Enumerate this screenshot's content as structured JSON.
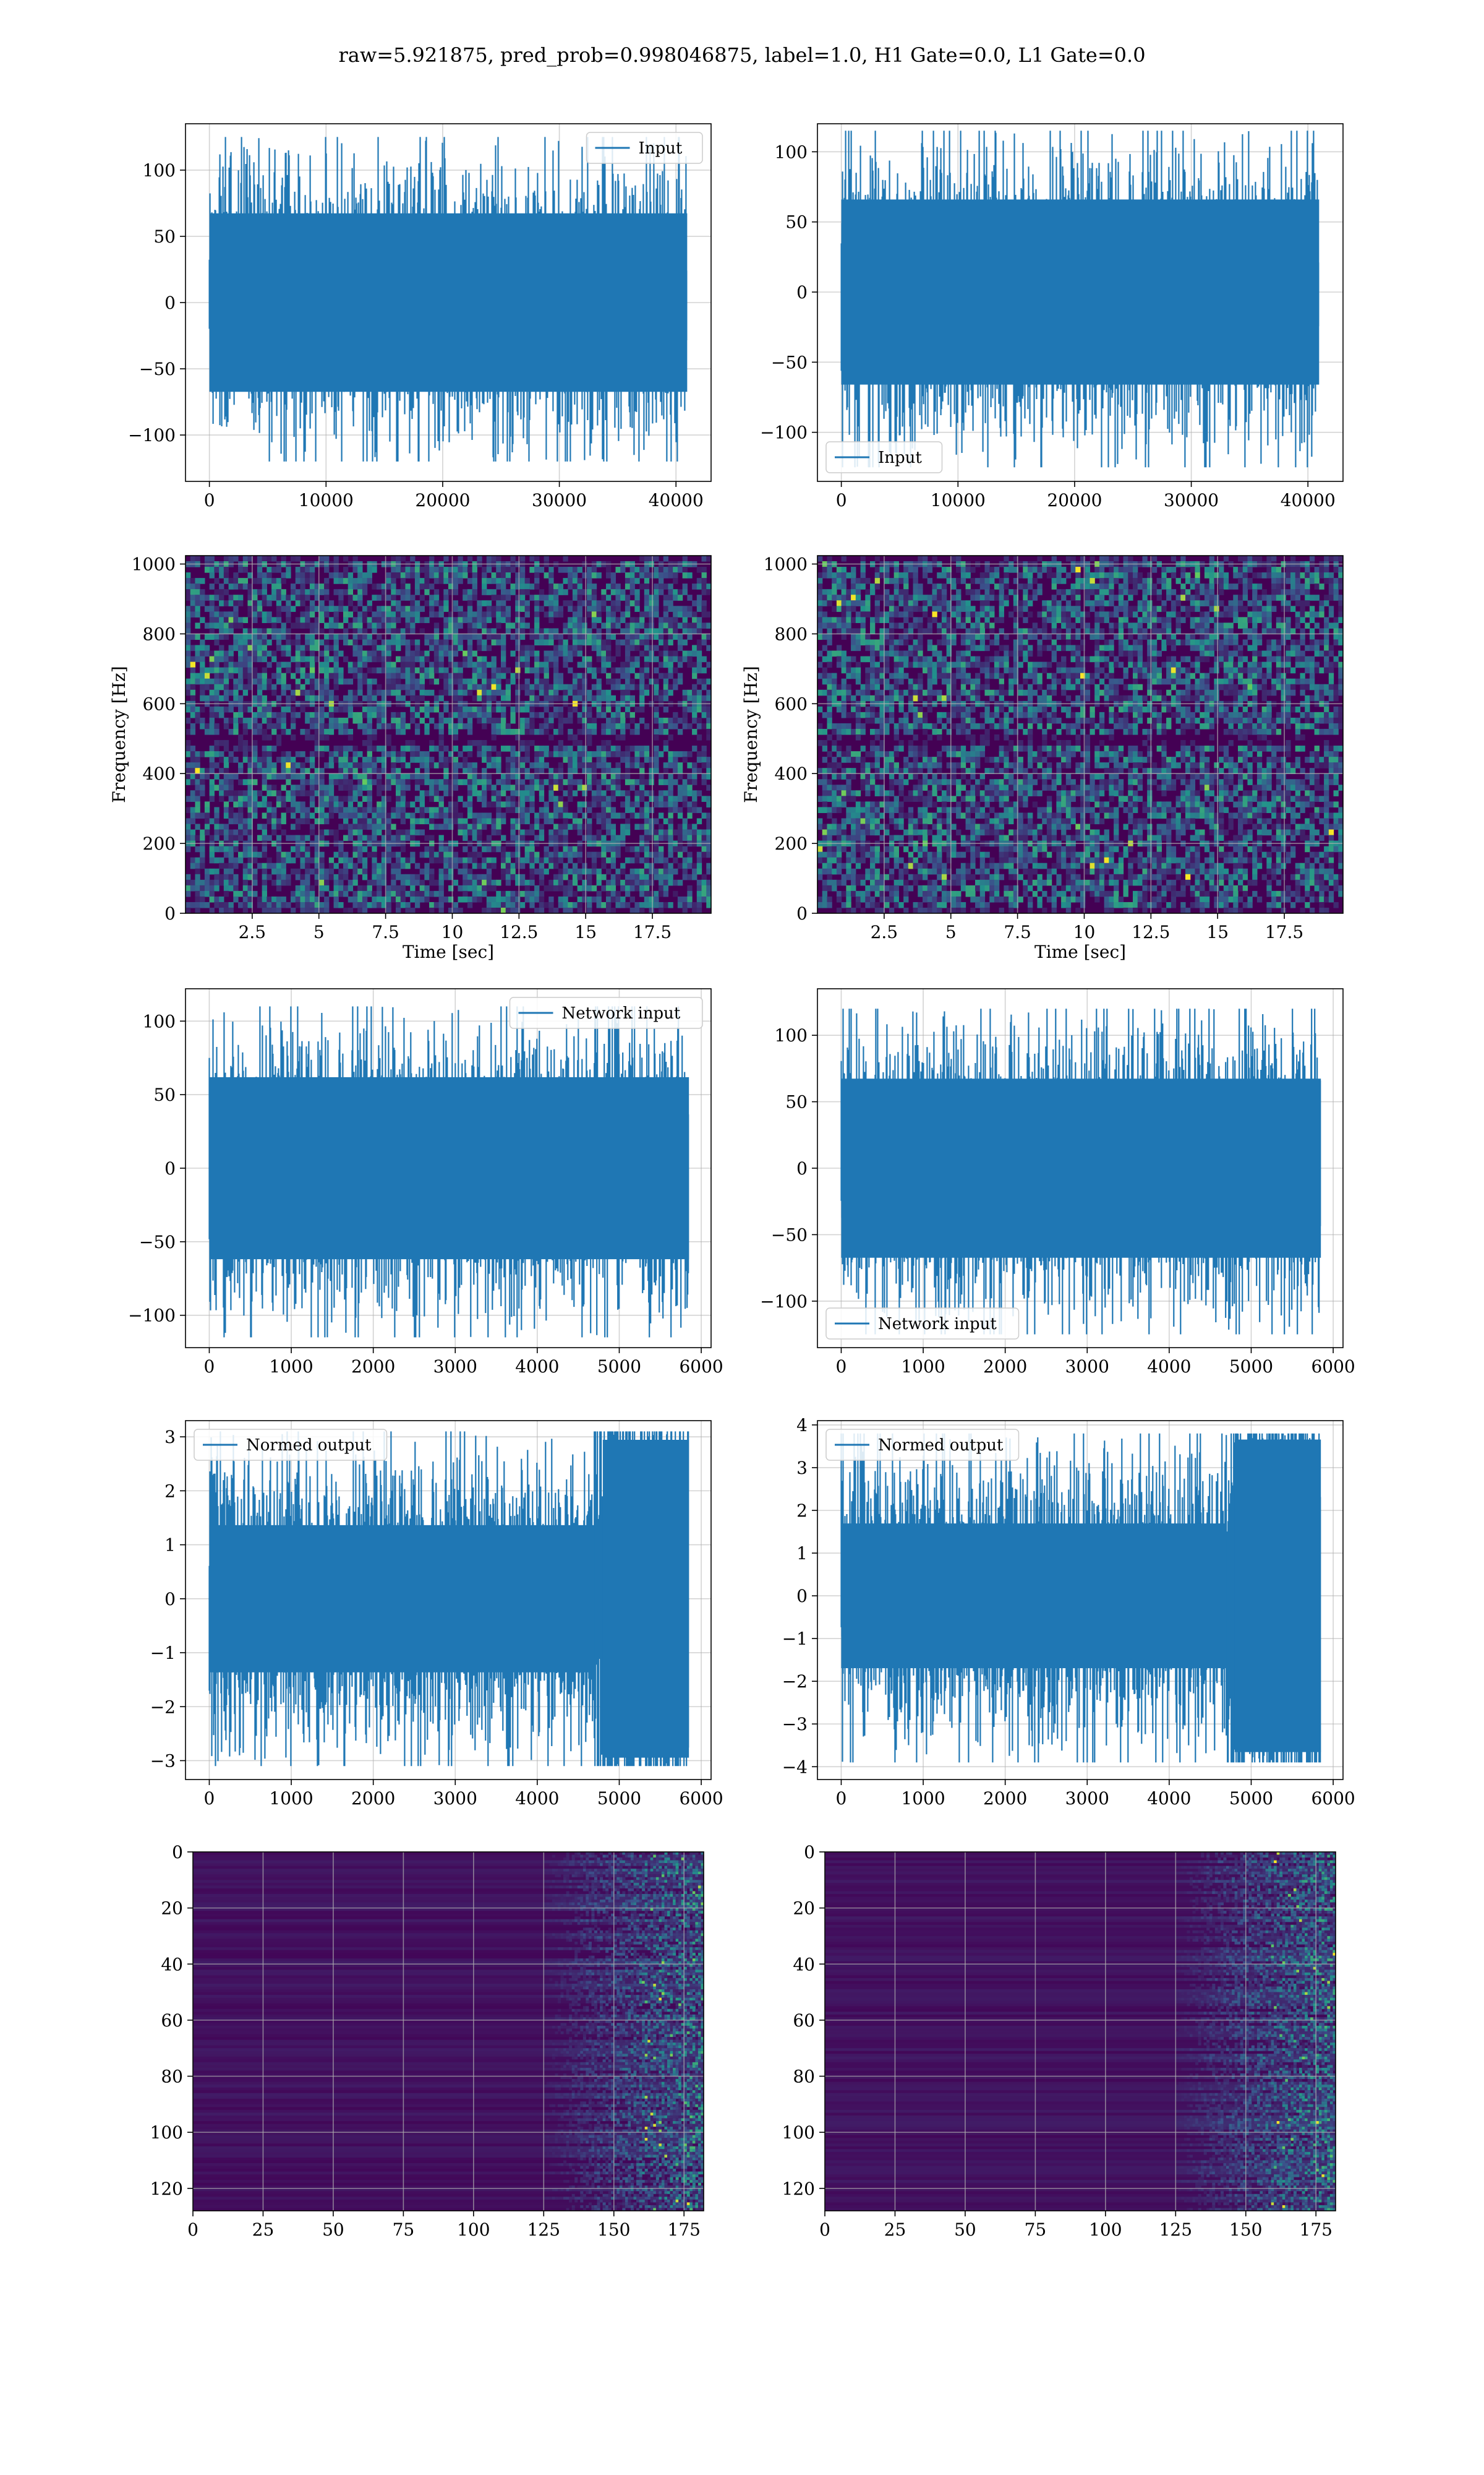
{
  "figure": {
    "suptitle": "raw=5.921875, pred_prob=0.998046875, label=1.0, H1 Gate=0.0, L1 Gate=0.0",
    "colors": {
      "line": "#1f77b4",
      "grid": "#b0b0b0",
      "viridis_dark": "#440154",
      "viridis_mid": "#21918c",
      "viridis_bright": "#fde725"
    }
  },
  "chart_data": [
    {
      "id": "input-h1",
      "type": "line",
      "series": [
        {
          "name": "Input",
          "n_points": 40960,
          "amplitude_range": [
            -120,
            125
          ]
        }
      ],
      "legend": "top-right",
      "xlim": [
        -2048,
        43008
      ],
      "ylim": [
        -135,
        135
      ],
      "xticks": [
        0,
        10000,
        20000,
        30000,
        40000
      ],
      "yticks": [
        -100,
        -50,
        0,
        50,
        100
      ],
      "grid": true
    },
    {
      "id": "input-l1",
      "type": "line",
      "series": [
        {
          "name": "Input",
          "n_points": 40960,
          "amplitude_range": [
            -125,
            115
          ]
        }
      ],
      "legend": "bottom-left",
      "xlim": [
        -2048,
        43008
      ],
      "ylim": [
        -135,
        120
      ],
      "xticks": [
        0,
        10000,
        20000,
        30000,
        40000
      ],
      "yticks": [
        -100,
        -50,
        0,
        50,
        100
      ],
      "grid": true
    },
    {
      "id": "spec-h1",
      "type": "heatmap",
      "colormap": "viridis",
      "xlabel": "Time [sec]",
      "ylabel": "Frequency [Hz]",
      "xlim": [
        0,
        19.7
      ],
      "ylim": [
        0,
        1024
      ],
      "xticks": [
        2.5,
        5.0,
        7.5,
        10.0,
        12.5,
        15.0,
        17.5
      ],
      "yticks": [
        0,
        200,
        400,
        600,
        800,
        1000
      ],
      "dark_band_hz": 500,
      "grid": true
    },
    {
      "id": "spec-l1",
      "type": "heatmap",
      "colormap": "viridis",
      "xlabel": "Time [sec]",
      "ylabel": "Frequency [Hz]",
      "xlim": [
        0,
        19.7
      ],
      "ylim": [
        0,
        1024
      ],
      "xticks": [
        2.5,
        5.0,
        7.5,
        10.0,
        12.5,
        15.0,
        17.5
      ],
      "yticks": [
        0,
        200,
        400,
        600,
        800,
        1000
      ],
      "dark_band_hz": 500,
      "grid": true
    },
    {
      "id": "netin-h1",
      "type": "line",
      "series": [
        {
          "name": "Network input",
          "n_points": 5850,
          "amplitude_range": [
            -115,
            110
          ]
        }
      ],
      "legend": "top-right",
      "xlim": [
        -290,
        6120
      ],
      "ylim": [
        -122,
        122
      ],
      "xticks": [
        0,
        1000,
        2000,
        3000,
        4000,
        5000,
        6000
      ],
      "yticks": [
        -100,
        -50,
        0,
        50,
        100
      ],
      "grid": true
    },
    {
      "id": "netin-l1",
      "type": "line",
      "series": [
        {
          "name": "Network input",
          "n_points": 5850,
          "amplitude_range": [
            -125,
            120
          ]
        }
      ],
      "legend": "bottom-left",
      "xlim": [
        -290,
        6120
      ],
      "ylim": [
        -135,
        135
      ],
      "xticks": [
        0,
        1000,
        2000,
        3000,
        4000,
        5000,
        6000
      ],
      "yticks": [
        -100,
        -50,
        0,
        50,
        100
      ],
      "grid": true
    },
    {
      "id": "normed-h1",
      "type": "line",
      "series": [
        {
          "name": "Normed output",
          "n_points": 5850,
          "amplitude_range": [
            -3.1,
            3.1
          ],
          "burst_start": 4700,
          "burst_end": 5850
        }
      ],
      "legend": "top-left",
      "xlim": [
        -290,
        6120
      ],
      "ylim": [
        -3.35,
        3.3
      ],
      "xticks": [
        0,
        1000,
        2000,
        3000,
        4000,
        5000,
        6000
      ],
      "yticks": [
        -3,
        -2,
        -1,
        0,
        1,
        2,
        3
      ],
      "grid": true
    },
    {
      "id": "normed-l1",
      "type": "line",
      "series": [
        {
          "name": "Normed output",
          "n_points": 5850,
          "amplitude_range": [
            -3.9,
            3.8
          ],
          "burst_start": 4700,
          "burst_end": 5850
        }
      ],
      "legend": "top-left",
      "xlim": [
        -290,
        6120
      ],
      "ylim": [
        -4.3,
        4.1
      ],
      "xticks": [
        0,
        1000,
        2000,
        3000,
        4000,
        5000,
        6000
      ],
      "yticks": [
        -4,
        -3,
        -2,
        -1,
        0,
        1,
        2,
        3,
        4
      ],
      "grid": true
    },
    {
      "id": "feat-h1",
      "type": "heatmap",
      "colormap": "viridis",
      "xlim": [
        0,
        182
      ],
      "ylim": [
        128,
        0
      ],
      "xticks": [
        0,
        25,
        50,
        75,
        100,
        125,
        150,
        175
      ],
      "yticks": [
        0,
        20,
        40,
        60,
        80,
        100,
        120
      ],
      "active_from_col": 125,
      "grid": true
    },
    {
      "id": "feat-l1",
      "type": "heatmap",
      "colormap": "viridis",
      "xlim": [
        0,
        182
      ],
      "ylim": [
        128,
        0
      ],
      "xticks": [
        0,
        25,
        50,
        75,
        100,
        125,
        150,
        175
      ],
      "yticks": [
        0,
        20,
        40,
        60,
        80,
        100,
        120
      ],
      "active_from_col": 125,
      "grid": true
    }
  ]
}
